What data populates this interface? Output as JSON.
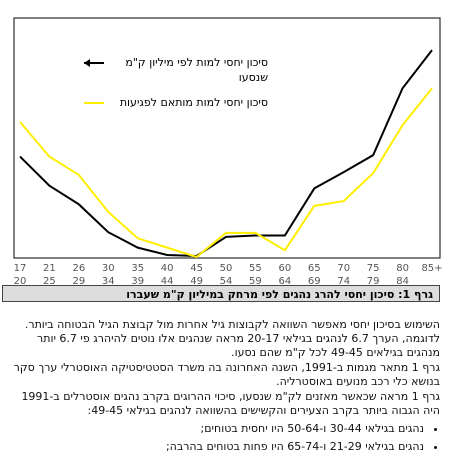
{
  "chart_data": {
    "type": "line",
    "log_scale": true,
    "ylim": [
      0.5,
      50
    ],
    "categories": [
      [
        "17",
        "20"
      ],
      [
        "21",
        "25"
      ],
      [
        "26",
        "29"
      ],
      [
        "30",
        "34"
      ],
      [
        "35",
        "39"
      ],
      [
        "40",
        "44"
      ],
      [
        "45",
        "49"
      ],
      [
        "50",
        "54"
      ],
      [
        "55",
        "59"
      ],
      [
        "60",
        "64"
      ],
      [
        "65",
        "69"
      ],
      [
        "70",
        "74"
      ],
      [
        "75",
        "79"
      ],
      [
        "80",
        "84"
      ],
      [
        "85+"
      ]
    ],
    "series": [
      {
        "name": "סיכון יחסי למות לפי מיליון ק\"מ שנסעו",
        "color": "#000000",
        "values": [
          3.5,
          2.0,
          1.4,
          0.82,
          0.61,
          0.53,
          0.52,
          0.75,
          0.77,
          0.77,
          1.9,
          2.6,
          3.6,
          13,
          27
        ]
      },
      {
        "name": "סיכון יחסי למות מותאם לפגיעות",
        "color": "#ffee00",
        "values": [
          6.8,
          3.5,
          2.46,
          1.21,
          0.73,
          0.61,
          0.51,
          0.81,
          0.81,
          0.58,
          1.36,
          1.49,
          2.55,
          6.4,
          13
        ]
      }
    ],
    "caption": "גרף 1: סיכון יחסי להרג נהגים לפי מרחק במיליון ק\"מ שעברו"
  },
  "text": {
    "paragraphs": [
      "השימוש בסיכון יחסי מאפשר השוואה לקבוצות גיל אחרות מול קבוצת הגיל הבטוחה ביותר. לדוגמה, הערך 6.7 לנהגים בגילאי 20-17 מראה שנהגים אלו נוטים להיהרג פי 6.7 יותר מנהגים בגילאים 49-45 לכל ק\"מ שהם נסעו.",
      "גרף 1 מתאר מגמות ב-1991, השנה האחרונה בה משרד הסטטיסטיקה האוסטרלי ערך סקר בנושא כלי רכב מנועים באוסטרליה.",
      "גרף 1 מראה שכאשר מאזנים לק\"מ שנסעו, סיכוי ההרוגים בקרב נהגים אוסטרלים ב-1991 היה הגבוה ביותר בקרב הצעירים והקשישים בהשוואה לנהגים בגילאי 49-45:"
    ],
    "bullets": [
      "נהגים בגילאי 30-44 ו-50-64 היו יחסית בטוחים;",
      "נהגים בגילאי 21-29 ו-65-74 היו פחות בטוחים בהרבה;"
    ]
  }
}
